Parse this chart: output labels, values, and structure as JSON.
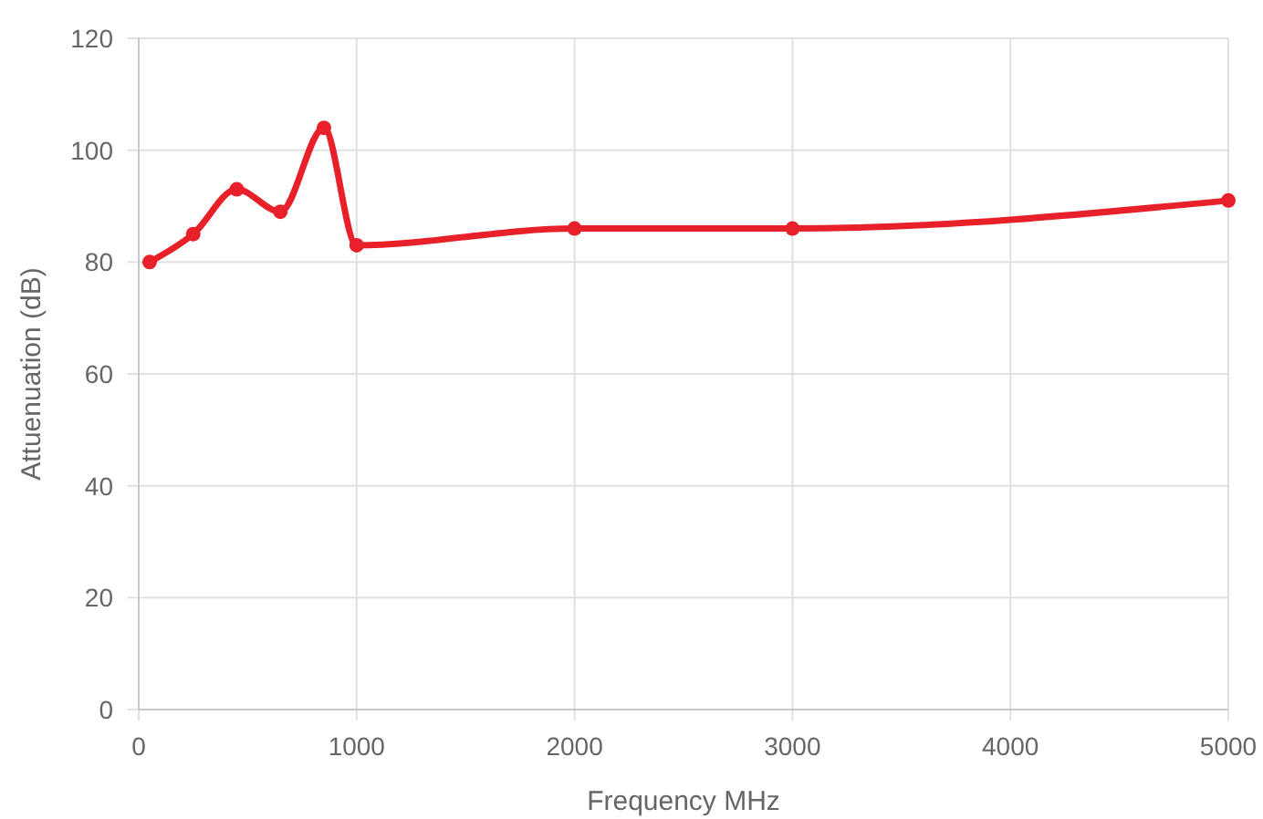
{
  "chart_data": {
    "type": "line",
    "xlabel": "Frequency MHz",
    "ylabel": "Attuenuation (dB)",
    "x": [
      50,
      250,
      450,
      650,
      850,
      1000,
      2000,
      3000,
      5000
    ],
    "series": [
      {
        "color": "#e8202a",
        "values": [
          80,
          85,
          93,
          89,
          104,
          83,
          86,
          86,
          91
        ]
      }
    ],
    "xlim": [
      0,
      5000
    ],
    "xticks": [
      0,
      1000,
      2000,
      3000,
      4000,
      5000
    ],
    "ylim": [
      0,
      120
    ],
    "yticks": [
      0,
      20,
      40,
      60,
      80,
      100,
      120
    ],
    "grid": true,
    "marker": "circle",
    "line_style": "solid"
  }
}
